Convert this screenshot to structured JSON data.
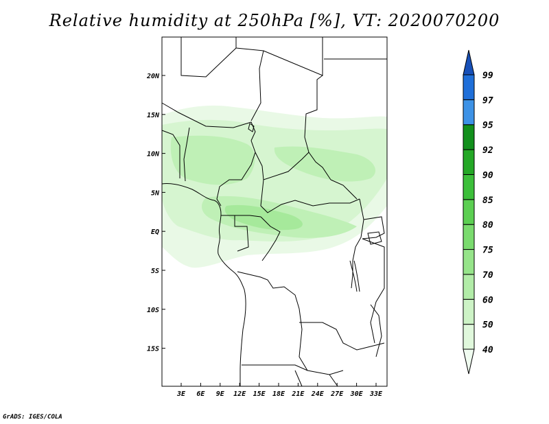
{
  "title": "Relative humidity at 250hPa [%], VT: 2020070200",
  "footer": "GrADS: IGES/COLA",
  "map": {
    "lon_labels": [
      "3E",
      "6E",
      "9E",
      "12E",
      "15E",
      "18E",
      "21E",
      "24E",
      "27E",
      "30E",
      "33E"
    ],
    "lat_labels": [
      "20N",
      "15N",
      "10N",
      "5N",
      "EQ",
      "5S",
      "10S",
      "15S"
    ]
  },
  "colorbar": {
    "levels": [
      "40",
      "50",
      "60",
      "70",
      "75",
      "80",
      "85",
      "90",
      "92",
      "95",
      "97",
      "99"
    ],
    "colors": [
      "#f0fcf0",
      "#e0f8dc",
      "#cdf3c6",
      "#b2eca8",
      "#96e48a",
      "#7adb6e",
      "#5ccf52",
      "#3cbf3a",
      "#24a826",
      "#12901c",
      "#3d92e6",
      "#1f6fd9",
      "#1750b8"
    ]
  }
}
